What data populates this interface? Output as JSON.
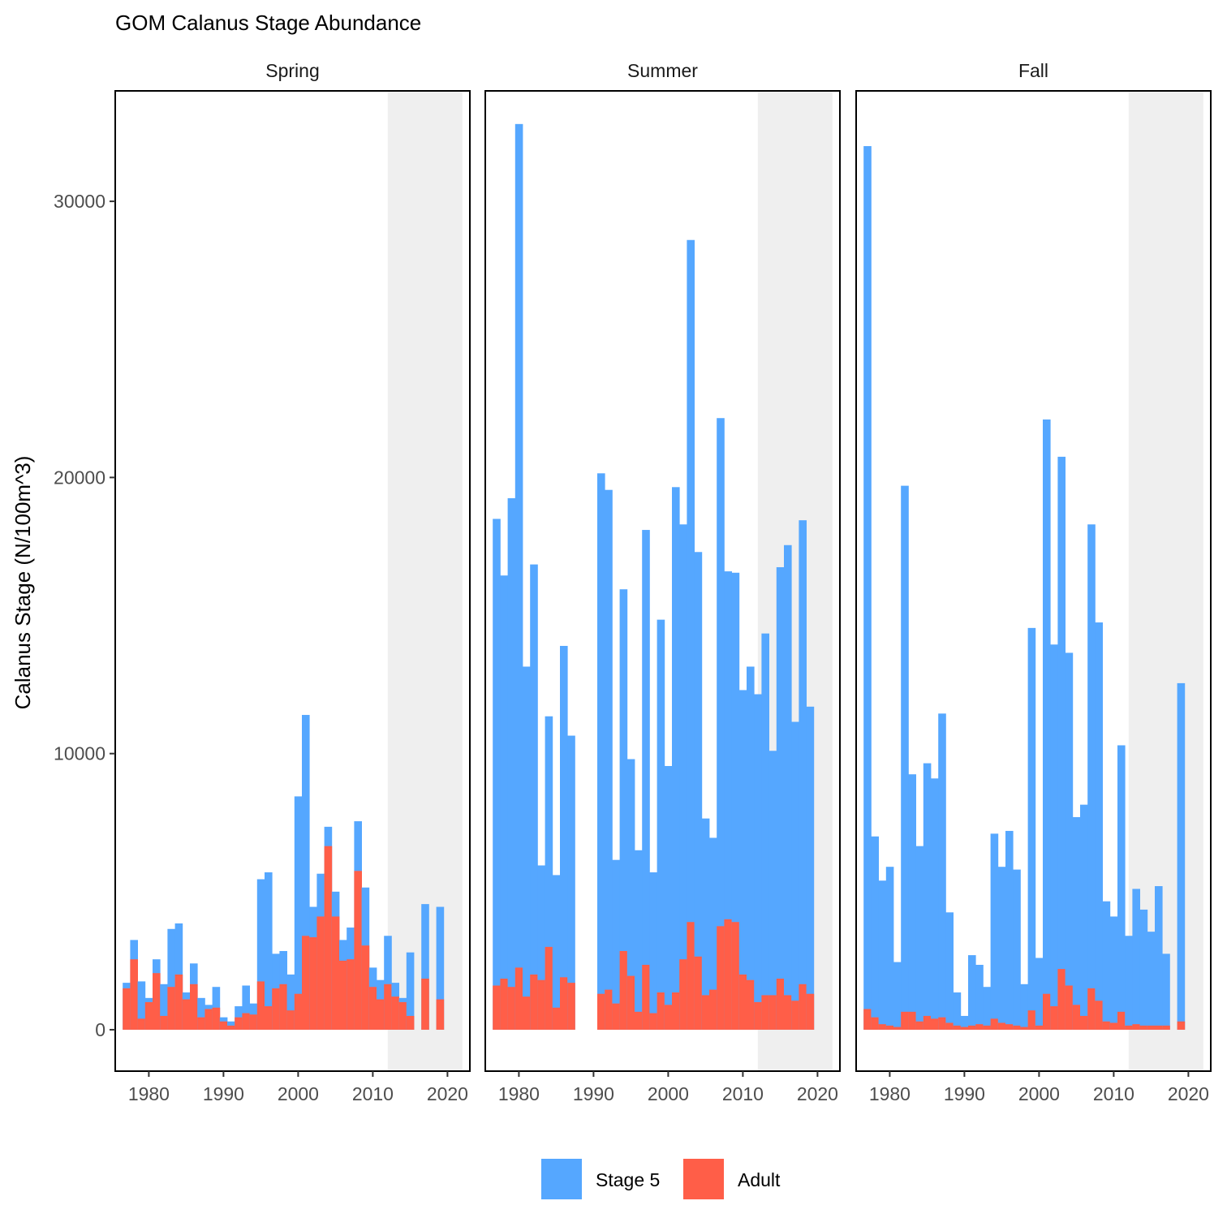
{
  "chart_data": {
    "type": "bar",
    "stacked": true,
    "title": "GOM Calanus Stage Abundance",
    "ylabel": "Calanus Stage (N/100m^3)",
    "xlabel": "",
    "xlim": [
      1975.5,
      2023
    ],
    "ylim": [
      -1500,
      34000
    ],
    "yticks": [
      0,
      10000,
      20000,
      30000
    ],
    "xticks": [
      1980,
      1990,
      2000,
      2010,
      2020
    ],
    "shaded_range": [
      2012,
      2022
    ],
    "legend_position": "bottom",
    "colors": {
      "Stage 5": "#55a7ff",
      "Adult": "#ff5e48",
      "shade": "#efefef"
    },
    "years": [
      1977,
      1978,
      1979,
      1980,
      1981,
      1982,
      1983,
      1984,
      1985,
      1986,
      1987,
      1988,
      1989,
      1990,
      1991,
      1992,
      1993,
      1994,
      1995,
      1996,
      1997,
      1998,
      1999,
      2000,
      2001,
      2002,
      2003,
      2004,
      2005,
      2006,
      2007,
      2008,
      2009,
      2010,
      2011,
      2012,
      2013,
      2014,
      2015,
      2016,
      2017,
      2018,
      2019
    ],
    "series": [
      {
        "name": "Stage 5"
      },
      {
        "name": "Adult"
      }
    ],
    "panels": [
      {
        "name": "Spring",
        "totals": [
          1700,
          3250,
          1750,
          1150,
          2550,
          1650,
          3650,
          3850,
          1350,
          2400,
          1150,
          900,
          1550,
          450,
          300,
          850,
          1600,
          950,
          5450,
          5700,
          2750,
          2850,
          2000,
          8450,
          11400,
          4450,
          5650,
          7350,
          5000,
          3250,
          3700,
          7550,
          5150,
          2250,
          1800,
          3400,
          1700,
          1150,
          2800,
          null,
          4550,
          null,
          4450
        ],
        "adult": [
          1500,
          2550,
          400,
          1000,
          2050,
          500,
          1550,
          2000,
          1100,
          1650,
          450,
          750,
          800,
          300,
          150,
          450,
          600,
          550,
          1750,
          850,
          1500,
          1650,
          700,
          1300,
          3400,
          3350,
          4100,
          6650,
          4100,
          2500,
          2550,
          5750,
          3050,
          1550,
          1100,
          1650,
          1200,
          1000,
          500,
          null,
          1850,
          null,
          1100
        ]
      },
      {
        "name": "Summer",
        "totals": [
          18500,
          16450,
          19250,
          32800,
          13150,
          16850,
          5950,
          11350,
          5600,
          13900,
          10650,
          null,
          null,
          null,
          20150,
          19550,
          6150,
          15950,
          9800,
          6500,
          18100,
          5700,
          14850,
          9550,
          19650,
          18300,
          28600,
          17300,
          7650,
          6950,
          22150,
          16600,
          16550,
          12300,
          13150,
          12150,
          14350,
          10100,
          16750,
          17550,
          11150,
          18450,
          11700
        ],
        "adult": [
          1600,
          1850,
          1550,
          2250,
          1200,
          2000,
          1800,
          3000,
          800,
          1900,
          1700,
          null,
          null,
          null,
          1300,
          1450,
          950,
          2850,
          1950,
          650,
          2350,
          600,
          1350,
          900,
          1350,
          2550,
          3900,
          2650,
          1250,
          1450,
          3750,
          4000,
          3900,
          2000,
          1800,
          1000,
          1250,
          1250,
          1850,
          1250,
          1050,
          1650,
          1300
        ]
      },
      {
        "name": "Fall",
        "totals": [
          32000,
          7000,
          5400,
          5900,
          2450,
          19700,
          9250,
          6650,
          9650,
          9100,
          11450,
          4250,
          1350,
          500,
          2700,
          2350,
          1550,
          7100,
          5900,
          7200,
          5800,
          1650,
          14550,
          2600,
          22100,
          13950,
          20750,
          13650,
          7700,
          8150,
          18300,
          14750,
          4650,
          4100,
          10300,
          3400,
          5100,
          4350,
          3550,
          5200,
          2750,
          null,
          12550
        ],
        "adult": [
          750,
          450,
          200,
          150,
          100,
          650,
          650,
          300,
          500,
          400,
          450,
          250,
          150,
          100,
          150,
          200,
          150,
          400,
          250,
          200,
          150,
          100,
          700,
          150,
          1300,
          850,
          2200,
          1600,
          900,
          500,
          1500,
          1050,
          300,
          250,
          650,
          150,
          200,
          150,
          150,
          150,
          150,
          null,
          300
        ]
      }
    ]
  }
}
